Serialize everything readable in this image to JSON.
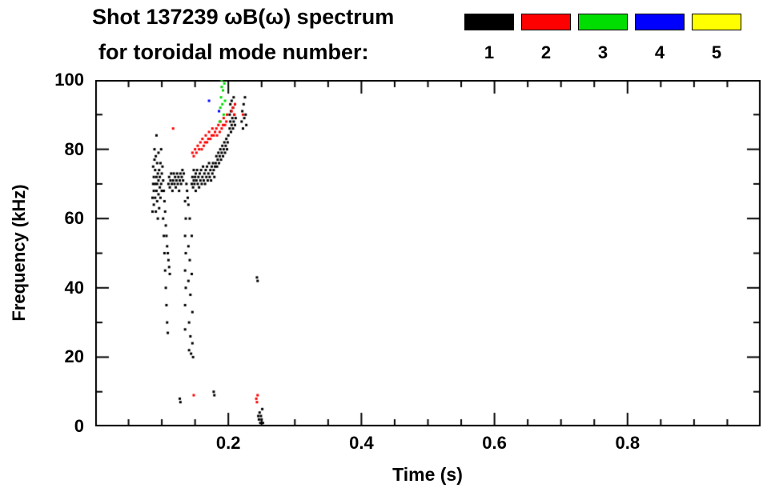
{
  "header": {
    "title_line1": "Shot 137239 ωB(ω) spectrum",
    "title_line2": "for toroidal mode number:",
    "legend": [
      {
        "label": "1",
        "color": "#000000"
      },
      {
        "label": "2",
        "color": "#ff0000"
      },
      {
        "label": "3",
        "color": "#00dd00"
      },
      {
        "label": "4",
        "color": "#0000ff"
      },
      {
        "label": "5",
        "color": "#ffff00"
      }
    ]
  },
  "chart_data": {
    "type": "scatter",
    "title": "Shot 137239 ωB(ω) spectrum for toroidal mode number: 1 2 3 4 5",
    "xlabel": "Time (s)",
    "ylabel": "Frequency (kHz)",
    "xlim": [
      0,
      1.0
    ],
    "ylim": [
      0,
      100
    ],
    "xticks": [
      0.2,
      0.4,
      0.6,
      0.8
    ],
    "xtick_labels": [
      "0.2",
      "0.4",
      "0.6",
      "0.8"
    ],
    "yticks": [
      0,
      20,
      40,
      60,
      80,
      100
    ],
    "ytick_labels": [
      "0",
      "20",
      "40",
      "60",
      "80",
      "100"
    ],
    "x_minor_step": 0.05,
    "y_minor_step": 10,
    "grid": false,
    "legend_position": "top-right-above-plot",
    "series": [
      {
        "name": "n=1",
        "color": "#000000",
        "points": [
          [
            0.086,
            62
          ],
          [
            0.086,
            66
          ],
          [
            0.087,
            70
          ],
          [
            0.087,
            75
          ],
          [
            0.088,
            64
          ],
          [
            0.088,
            68
          ],
          [
            0.088,
            72
          ],
          [
            0.089,
            77
          ],
          [
            0.089,
            80
          ],
          [
            0.09,
            66
          ],
          [
            0.09,
            70
          ],
          [
            0.09,
            74
          ],
          [
            0.091,
            62
          ],
          [
            0.091,
            78
          ],
          [
            0.092,
            68
          ],
          [
            0.092,
            72
          ],
          [
            0.092,
            84
          ],
          [
            0.093,
            65
          ],
          [
            0.093,
            70
          ],
          [
            0.093,
            76
          ],
          [
            0.094,
            60
          ],
          [
            0.094,
            73
          ],
          [
            0.095,
            67
          ],
          [
            0.095,
            71
          ],
          [
            0.095,
            79
          ],
          [
            0.096,
            63
          ],
          [
            0.096,
            74
          ],
          [
            0.097,
            69
          ],
          [
            0.097,
            72
          ],
          [
            0.098,
            66
          ],
          [
            0.098,
            76
          ],
          [
            0.099,
            70
          ],
          [
            0.099,
            80
          ],
          [
            0.1,
            68
          ],
          [
            0.1,
            73
          ],
          [
            0.101,
            75
          ],
          [
            0.102,
            71
          ],
          [
            0.102,
            60
          ],
          [
            0.103,
            55
          ],
          [
            0.103,
            68
          ],
          [
            0.104,
            50
          ],
          [
            0.104,
            65
          ],
          [
            0.105,
            45
          ],
          [
            0.105,
            62
          ],
          [
            0.106,
            40
          ],
          [
            0.106,
            58
          ],
          [
            0.107,
            35
          ],
          [
            0.107,
            55
          ],
          [
            0.108,
            30
          ],
          [
            0.108,
            52
          ],
          [
            0.109,
            27
          ],
          [
            0.109,
            50
          ],
          [
            0.11,
            48
          ],
          [
            0.111,
            46
          ],
          [
            0.112,
            44
          ],
          [
            0.11,
            70
          ],
          [
            0.111,
            72
          ],
          [
            0.112,
            69
          ],
          [
            0.113,
            71
          ],
          [
            0.114,
            73
          ],
          [
            0.115,
            70
          ],
          [
            0.116,
            68
          ],
          [
            0.117,
            71
          ],
          [
            0.118,
            73
          ],
          [
            0.119,
            70
          ],
          [
            0.12,
            72
          ],
          [
            0.121,
            69
          ],
          [
            0.122,
            71
          ],
          [
            0.123,
            73
          ],
          [
            0.124,
            70
          ],
          [
            0.125,
            72
          ],
          [
            0.126,
            68
          ],
          [
            0.127,
            71
          ],
          [
            0.128,
            73
          ],
          [
            0.129,
            70
          ],
          [
            0.13,
            72
          ],
          [
            0.131,
            74
          ],
          [
            0.132,
            71
          ],
          [
            0.133,
            73
          ],
          [
            0.135,
            65
          ],
          [
            0.135,
            55
          ],
          [
            0.135,
            45
          ],
          [
            0.135,
            35
          ],
          [
            0.135,
            28
          ],
          [
            0.136,
            60
          ],
          [
            0.136,
            50
          ],
          [
            0.136,
            40
          ],
          [
            0.137,
            70
          ],
          [
            0.138,
            68
          ],
          [
            0.139,
            66
          ],
          [
            0.14,
            64
          ],
          [
            0.14,
            52
          ],
          [
            0.14,
            42
          ],
          [
            0.141,
            30
          ],
          [
            0.141,
            22
          ],
          [
            0.142,
            60
          ],
          [
            0.142,
            48
          ],
          [
            0.143,
            38
          ],
          [
            0.143,
            26
          ],
          [
            0.144,
            21
          ],
          [
            0.145,
            55
          ],
          [
            0.145,
            44
          ],
          [
            0.146,
            33
          ],
          [
            0.146,
            24
          ],
          [
            0.147,
            20
          ],
          [
            0.145,
            70
          ],
          [
            0.146,
            72
          ],
          [
            0.147,
            69
          ],
          [
            0.148,
            71
          ],
          [
            0.148,
            74
          ],
          [
            0.149,
            70
          ],
          [
            0.15,
            72
          ],
          [
            0.151,
            68
          ],
          [
            0.151,
            73
          ],
          [
            0.152,
            71
          ],
          [
            0.153,
            74
          ],
          [
            0.154,
            70
          ],
          [
            0.155,
            72
          ],
          [
            0.156,
            69
          ],
          [
            0.157,
            73
          ],
          [
            0.158,
            71
          ],
          [
            0.159,
            74
          ],
          [
            0.16,
            70
          ],
          [
            0.161,
            72
          ],
          [
            0.162,
            75
          ],
          [
            0.163,
            71
          ],
          [
            0.164,
            73
          ],
          [
            0.165,
            70
          ],
          [
            0.166,
            74
          ],
          [
            0.167,
            72
          ],
          [
            0.168,
            75
          ],
          [
            0.169,
            71
          ],
          [
            0.17,
            73
          ],
          [
            0.171,
            76
          ],
          [
            0.172,
            72
          ],
          [
            0.173,
            74
          ],
          [
            0.174,
            71
          ],
          [
            0.175,
            75
          ],
          [
            0.176,
            73
          ],
          [
            0.177,
            76
          ],
          [
            0.178,
            74
          ],
          [
            0.179,
            72
          ],
          [
            0.18,
            75
          ],
          [
            0.181,
            76
          ],
          [
            0.182,
            78
          ],
          [
            0.183,
            75
          ],
          [
            0.184,
            77
          ],
          [
            0.185,
            79
          ],
          [
            0.186,
            76
          ],
          [
            0.187,
            78
          ],
          [
            0.188,
            80
          ],
          [
            0.189,
            77
          ],
          [
            0.19,
            79
          ],
          [
            0.191,
            81
          ],
          [
            0.192,
            78
          ],
          [
            0.193,
            80
          ],
          [
            0.194,
            82
          ],
          [
            0.195,
            79
          ],
          [
            0.196,
            81
          ],
          [
            0.197,
            83
          ],
          [
            0.198,
            80
          ],
          [
            0.199,
            82
          ],
          [
            0.2,
            84
          ],
          [
            0.202,
            86
          ],
          [
            0.202,
            90
          ],
          [
            0.203,
            88
          ],
          [
            0.203,
            93
          ],
          [
            0.204,
            85
          ],
          [
            0.204,
            91
          ],
          [
            0.205,
            87
          ],
          [
            0.205,
            94
          ],
          [
            0.206,
            89
          ],
          [
            0.207,
            86
          ],
          [
            0.207,
            92
          ],
          [
            0.208,
            88
          ],
          [
            0.208,
            95
          ],
          [
            0.209,
            90
          ],
          [
            0.21,
            87
          ],
          [
            0.21,
            93
          ],
          [
            0.211,
            89
          ],
          [
            0.22,
            88
          ],
          [
            0.221,
            91
          ],
          [
            0.222,
            86
          ],
          [
            0.223,
            93
          ],
          [
            0.224,
            89
          ],
          [
            0.225,
            95
          ],
          [
            0.226,
            90
          ],
          [
            0.227,
            87
          ],
          [
            0.127,
            8
          ],
          [
            0.128,
            7
          ],
          [
            0.178,
            10
          ],
          [
            0.179,
            9
          ],
          [
            0.243,
            43
          ],
          [
            0.244,
            42
          ],
          [
            0.245,
            3
          ],
          [
            0.246,
            2
          ],
          [
            0.247,
            4
          ],
          [
            0.248,
            1
          ],
          [
            0.249,
            3
          ],
          [
            0.25,
            2
          ],
          [
            0.251,
            5
          ],
          [
            0.252,
            1
          ]
        ]
      },
      {
        "name": "n=2",
        "color": "#ff0000",
        "points": [
          [
            0.117,
            86
          ],
          [
            0.146,
            79
          ],
          [
            0.148,
            78
          ],
          [
            0.15,
            80
          ],
          [
            0.152,
            79
          ],
          [
            0.154,
            81
          ],
          [
            0.156,
            80
          ],
          [
            0.158,
            82
          ],
          [
            0.16,
            80
          ],
          [
            0.161,
            83
          ],
          [
            0.163,
            81
          ],
          [
            0.165,
            82
          ],
          [
            0.166,
            84
          ],
          [
            0.168,
            82
          ],
          [
            0.17,
            83
          ],
          [
            0.171,
            85
          ],
          [
            0.173,
            83
          ],
          [
            0.175,
            84
          ],
          [
            0.176,
            86
          ],
          [
            0.178,
            84
          ],
          [
            0.18,
            85
          ],
          [
            0.182,
            86
          ],
          [
            0.183,
            84
          ],
          [
            0.185,
            87
          ],
          [
            0.187,
            85
          ],
          [
            0.188,
            88
          ],
          [
            0.19,
            86
          ],
          [
            0.192,
            87
          ],
          [
            0.193,
            89
          ],
          [
            0.195,
            87
          ],
          [
            0.197,
            88
          ],
          [
            0.198,
            90
          ],
          [
            0.205,
            91
          ],
          [
            0.207,
            92
          ],
          [
            0.209,
            90
          ],
          [
            0.21,
            93
          ],
          [
            0.222,
            90
          ],
          [
            0.148,
            9
          ],
          [
            0.242,
            8
          ],
          [
            0.243,
            7
          ],
          [
            0.244,
            9
          ]
        ]
      },
      {
        "name": "n=3",
        "color": "#00dd00",
        "points": [
          [
            0.187,
            88
          ],
          [
            0.188,
            92
          ],
          [
            0.189,
            95
          ],
          [
            0.19,
            98
          ],
          [
            0.19,
            100
          ],
          [
            0.191,
            93
          ],
          [
            0.192,
            97
          ],
          [
            0.193,
            90
          ],
          [
            0.194,
            99
          ],
          [
            0.195,
            94
          ]
        ]
      },
      {
        "name": "n=4",
        "color": "#0000ff",
        "points": [
          [
            0.171,
            94
          ],
          [
            0.186,
            91
          ]
        ]
      },
      {
        "name": "n=5",
        "color": "#ffff00",
        "points": []
      }
    ]
  }
}
